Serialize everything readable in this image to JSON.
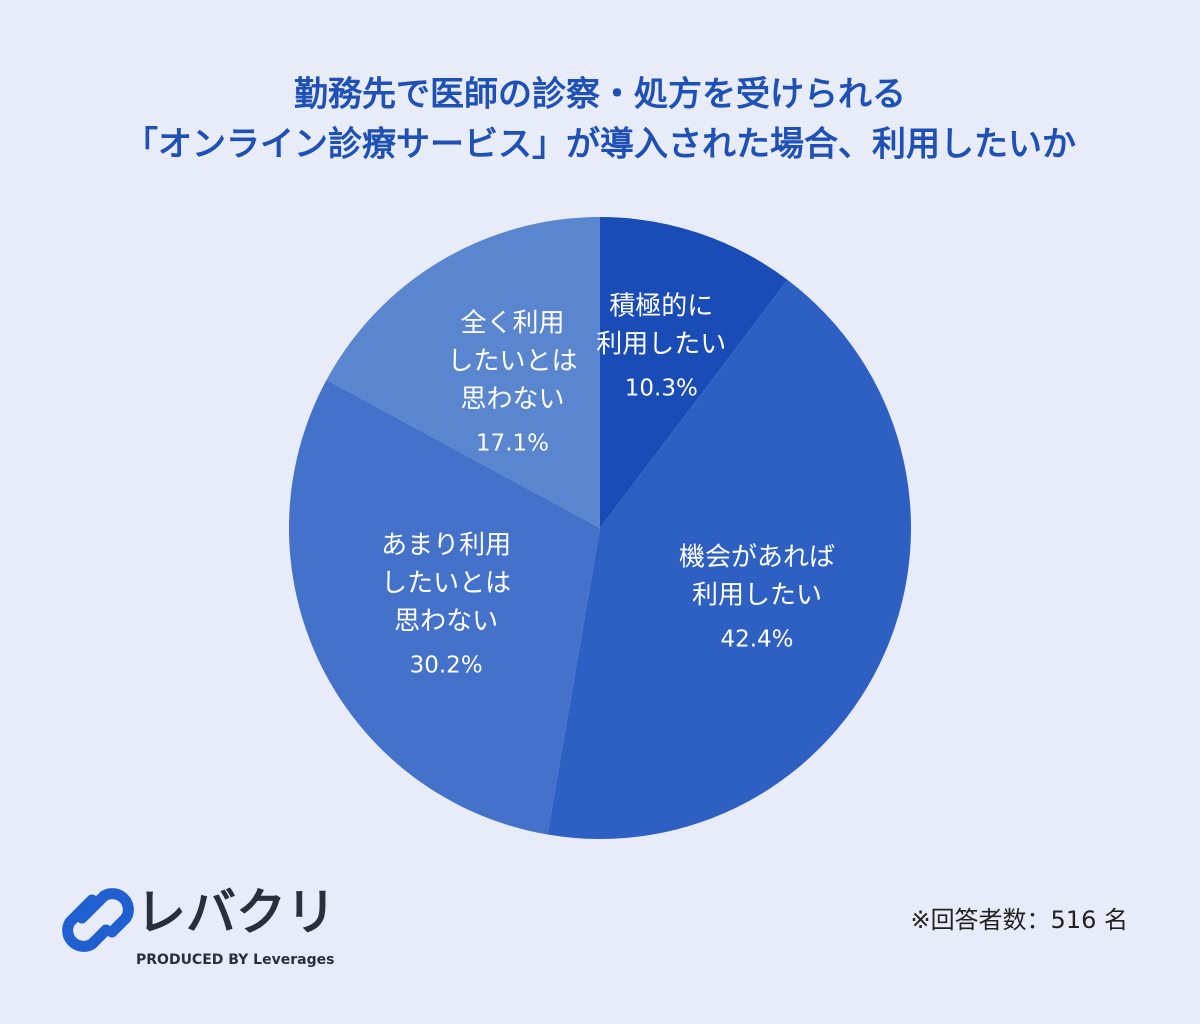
{
  "chart_data": {
    "type": "pie",
    "title": [
      "勤務先で医師の診察・処方を受けられる",
      "「オンライン診療サービス」が導入された場合、利用したいか"
    ],
    "categories": [
      [
        "積極的に",
        "利用したい"
      ],
      [
        "機会があれば",
        "利用したい"
      ],
      [
        "あまり利用",
        "したいとは",
        "思わない"
      ],
      [
        "全く利用",
        "したいとは",
        "思わない"
      ]
    ],
    "values": [
      10.3,
      42.4,
      30.2,
      17.1
    ],
    "value_labels": [
      "10.3%",
      "42.4%",
      "30.2%",
      "17.1%"
    ],
    "colors": [
      "#1a4cb8",
      "#2d60c2",
      "#4471c9",
      "#5a85cf"
    ],
    "note": "※回答者数：516 名"
  },
  "logo": {
    "name": "レバクリ",
    "tagline": "PRODUCED BY Leverages"
  }
}
